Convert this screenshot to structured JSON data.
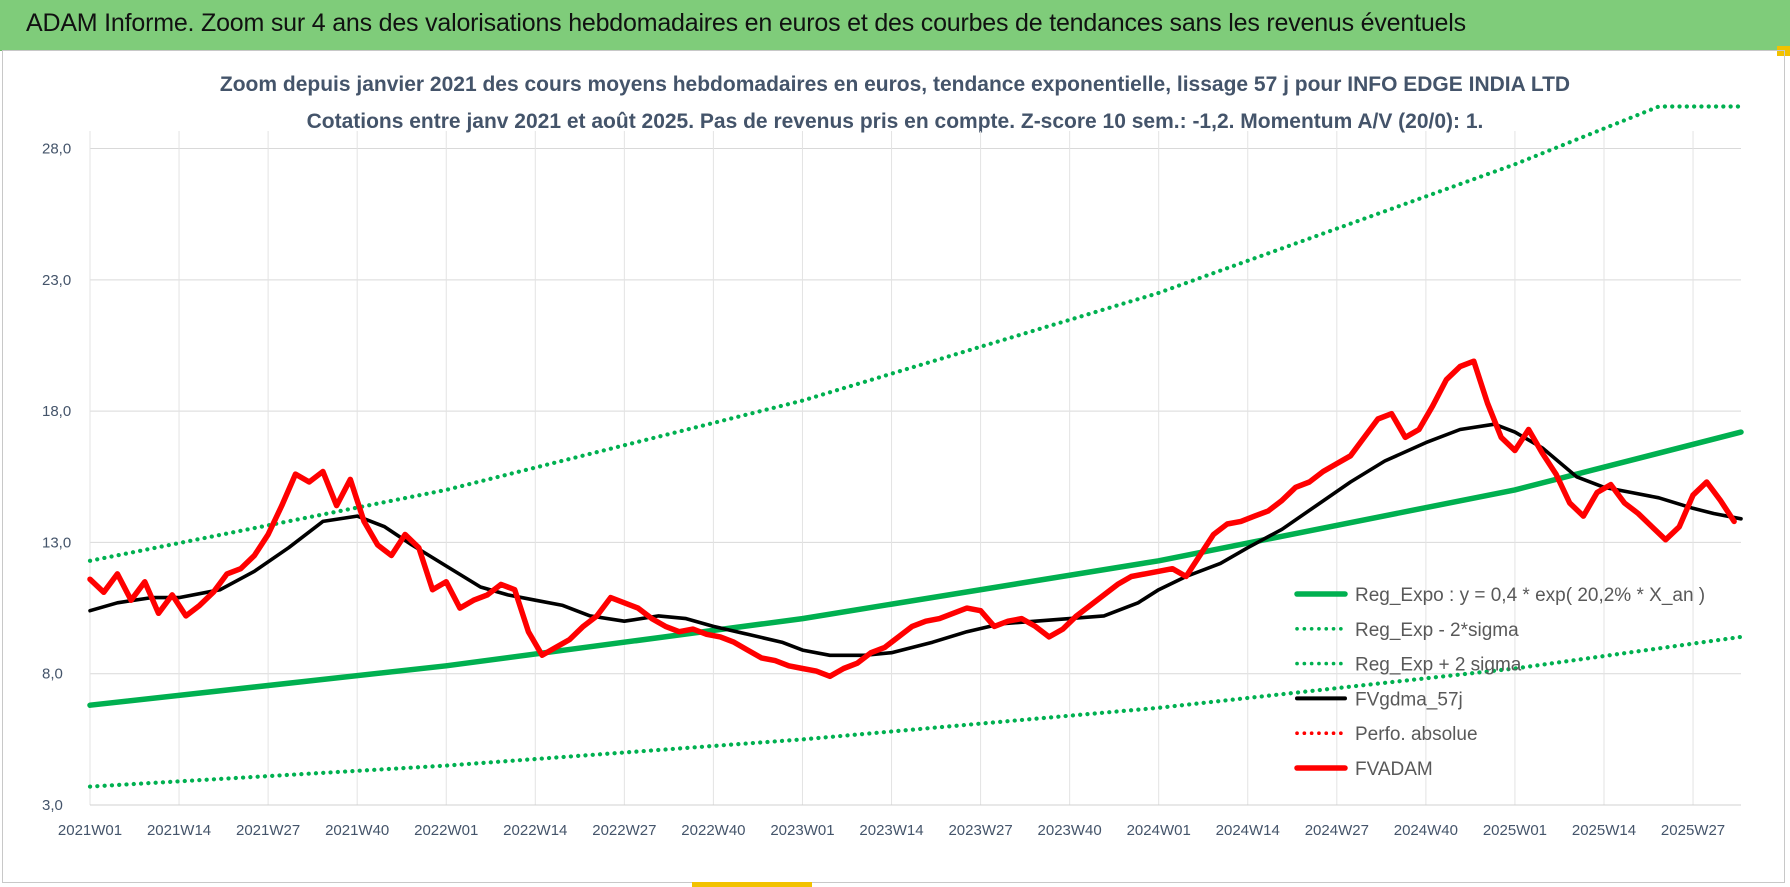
{
  "header": {
    "title": "ADAM Informe. Zoom sur 4 ans des valorisations hebdomadaires en euros et des courbes de tendances sans les revenus éventuels"
  },
  "chart_data": {
    "type": "line",
    "title": "Zoom depuis janvier 2021 des cours moyens hebdomadaires en euros, tendance exponentielle, lissage 57 j pour INFO EDGE INDIA LTD",
    "subtitle": "Cotations entre janv 2021 et août 2025.  Pas de revenus pris en compte. Z-score 10 sem.: -1,2. Momentum A/V (20/0): 1.",
    "xlabel": "",
    "ylabel": "",
    "ylim": [
      3,
      30
    ],
    "yticks": [
      "3,0",
      "8,0",
      "13,0",
      "18,0",
      "23,0",
      "28,0"
    ],
    "ytick_values": [
      3,
      8,
      13,
      18,
      23,
      28
    ],
    "xticks": [
      "2021W01",
      "2021W14",
      "2021W27",
      "2021W40",
      "2022W01",
      "2022W14",
      "2022W27",
      "2022W40",
      "2023W01",
      "2023W14",
      "2023W27",
      "2023W40",
      "2024W01",
      "2024W14",
      "2024W27",
      "2024W40",
      "2025W01",
      "2025W14",
      "2025W27"
    ],
    "x_start": "2021W01",
    "x_end": "2025W34",
    "grid": true,
    "legend_position": "bottom-right",
    "series": [
      {
        "name": "Reg_Expo : y = 0,4 * exp( 20,2% *  X_an )",
        "style": "solid",
        "color": "#00b050",
        "x": [
          "2021W01",
          "2022W01",
          "2023W01",
          "2024W01",
          "2025W01",
          "2025W34"
        ],
        "values": [
          6.8,
          8.3,
          10.1,
          12.3,
          15.0,
          17.2
        ]
      },
      {
        "name": "Reg_Exp - 2*sigma",
        "style": "dotted",
        "color": "#00b050",
        "x": [
          "2021W01",
          "2022W01",
          "2023W01",
          "2024W01",
          "2025W01",
          "2025W34"
        ],
        "values": [
          3.7,
          4.5,
          5.5,
          6.7,
          8.2,
          9.4
        ]
      },
      {
        "name": "Reg_Exp + 2 sigma",
        "style": "dotted",
        "color": "#00b050",
        "x": [
          "2021W01",
          "2022W01",
          "2023W01",
          "2024W01",
          "2025W01",
          "2025W22",
          "2025W34"
        ],
        "values": [
          12.3,
          15.0,
          18.4,
          22.5,
          27.4,
          29.6,
          29.6
        ]
      },
      {
        "name": "FVgdma_57j",
        "style": "solid",
        "color": "#000000",
        "x": [
          "2021W01",
          "2021W05",
          "2021W10",
          "2021W14",
          "2021W20",
          "2021W25",
          "2021W30",
          "2021W35",
          "2021W40",
          "2021W44",
          "2021W48",
          "2022W01",
          "2022W06",
          "2022W10",
          "2022W14",
          "2022W18",
          "2022W22",
          "2022W27",
          "2022W32",
          "2022W36",
          "2022W40",
          "2022W45",
          "2022W50",
          "2023W01",
          "2023W05",
          "2023W10",
          "2023W14",
          "2023W20",
          "2023W25",
          "2023W30",
          "2023W35",
          "2023W40",
          "2023W45",
          "2023W50",
          "2024W01",
          "2024W05",
          "2024W10",
          "2024W14",
          "2024W19",
          "2024W24",
          "2024W29",
          "2024W34",
          "2024W40",
          "2024W45",
          "2024W50",
          "2025W01",
          "2025W05",
          "2025W10",
          "2025W14",
          "2025W18",
          "2025W22",
          "2025W27",
          "2025W30",
          "2025W34"
        ],
        "values": [
          10.4,
          10.7,
          10.9,
          10.9,
          11.2,
          11.9,
          12.8,
          13.8,
          14.0,
          13.6,
          12.9,
          12.1,
          11.3,
          11.0,
          10.8,
          10.6,
          10.2,
          10.0,
          10.2,
          10.1,
          9.8,
          9.5,
          9.2,
          8.9,
          8.7,
          8.7,
          8.8,
          9.2,
          9.6,
          9.9,
          10.0,
          10.1,
          10.2,
          10.7,
          11.2,
          11.7,
          12.2,
          12.8,
          13.5,
          14.4,
          15.3,
          16.1,
          16.8,
          17.3,
          17.5,
          17.2,
          16.6,
          15.5,
          15.1,
          14.9,
          14.7,
          14.3,
          14.1,
          13.9
        ]
      },
      {
        "name": "Perfo. absolue",
        "style": "dotted",
        "color": "#ff0000",
        "x": [],
        "values": []
      },
      {
        "name": "FVADAM",
        "style": "solid-thick",
        "color": "#ff0000",
        "x": [
          "2021W01",
          "2021W03",
          "2021W05",
          "2021W07",
          "2021W09",
          "2021W11",
          "2021W13",
          "2021W15",
          "2021W17",
          "2021W19",
          "2021W21",
          "2021W23",
          "2021W25",
          "2021W27",
          "2021W29",
          "2021W31",
          "2021W33",
          "2021W35",
          "2021W37",
          "2021W39",
          "2021W41",
          "2021W43",
          "2021W45",
          "2021W47",
          "2021W49",
          "2021W51",
          "2022W01",
          "2022W03",
          "2022W05",
          "2022W07",
          "2022W09",
          "2022W11",
          "2022W13",
          "2022W15",
          "2022W17",
          "2022W19",
          "2022W21",
          "2022W23",
          "2022W25",
          "2022W27",
          "2022W29",
          "2022W31",
          "2022W33",
          "2022W35",
          "2022W37",
          "2022W39",
          "2022W41",
          "2022W43",
          "2022W45",
          "2022W47",
          "2022W49",
          "2022W51",
          "2023W01",
          "2023W03",
          "2023W05",
          "2023W07",
          "2023W09",
          "2023W11",
          "2023W13",
          "2023W15",
          "2023W17",
          "2023W19",
          "2023W21",
          "2023W23",
          "2023W25",
          "2023W27",
          "2023W29",
          "2023W31",
          "2023W33",
          "2023W35",
          "2023W37",
          "2023W39",
          "2023W41",
          "2023W43",
          "2023W45",
          "2023W47",
          "2023W49",
          "2023W51",
          "2024W01",
          "2024W03",
          "2024W05",
          "2024W07",
          "2024W09",
          "2024W11",
          "2024W13",
          "2024W15",
          "2024W17",
          "2024W19",
          "2024W21",
          "2024W23",
          "2024W25",
          "2024W27",
          "2024W29",
          "2024W31",
          "2024W33",
          "2024W35",
          "2024W37",
          "2024W39",
          "2024W41",
          "2024W43",
          "2024W45",
          "2024W47",
          "2024W49",
          "2024W51",
          "2025W01",
          "2025W03",
          "2025W05",
          "2025W07",
          "2025W09",
          "2025W11",
          "2025W13",
          "2025W15",
          "2025W17",
          "2025W19",
          "2025W21",
          "2025W23",
          "2025W25",
          "2025W27",
          "2025W29",
          "2025W31",
          "2025W33"
        ],
        "values": [
          11.6,
          11.1,
          11.8,
          10.8,
          11.5,
          10.3,
          11.0,
          10.2,
          10.6,
          11.1,
          11.8,
          12.0,
          12.5,
          13.3,
          14.4,
          15.6,
          15.3,
          15.7,
          14.4,
          15.4,
          13.8,
          12.9,
          12.5,
          13.3,
          12.8,
          11.2,
          11.5,
          10.5,
          10.8,
          11.0,
          11.4,
          11.2,
          9.6,
          8.7,
          9.0,
          9.3,
          9.8,
          10.2,
          10.9,
          10.7,
          10.5,
          10.1,
          9.8,
          9.6,
          9.7,
          9.5,
          9.4,
          9.2,
          8.9,
          8.6,
          8.5,
          8.3,
          8.2,
          8.1,
          7.9,
          8.2,
          8.4,
          8.8,
          9.0,
          9.4,
          9.8,
          10.0,
          10.1,
          10.3,
          10.5,
          10.4,
          9.8,
          10.0,
          10.1,
          9.8,
          9.4,
          9.7,
          10.2,
          10.6,
          11.0,
          11.4,
          11.7,
          11.8,
          11.9,
          12.0,
          11.7,
          12.5,
          13.3,
          13.7,
          13.8,
          14.0,
          14.2,
          14.6,
          15.1,
          15.3,
          15.7,
          16.0,
          16.3,
          17.0,
          17.7,
          17.9,
          17.0,
          17.3,
          18.2,
          19.2,
          19.7,
          19.9,
          18.3,
          17.0,
          16.5,
          17.3,
          16.4,
          15.6,
          14.5,
          14.0,
          14.9,
          15.2,
          14.5,
          14.1,
          13.6,
          13.1,
          13.6,
          14.8,
          15.3,
          14.6,
          13.8
        ]
      }
    ]
  }
}
